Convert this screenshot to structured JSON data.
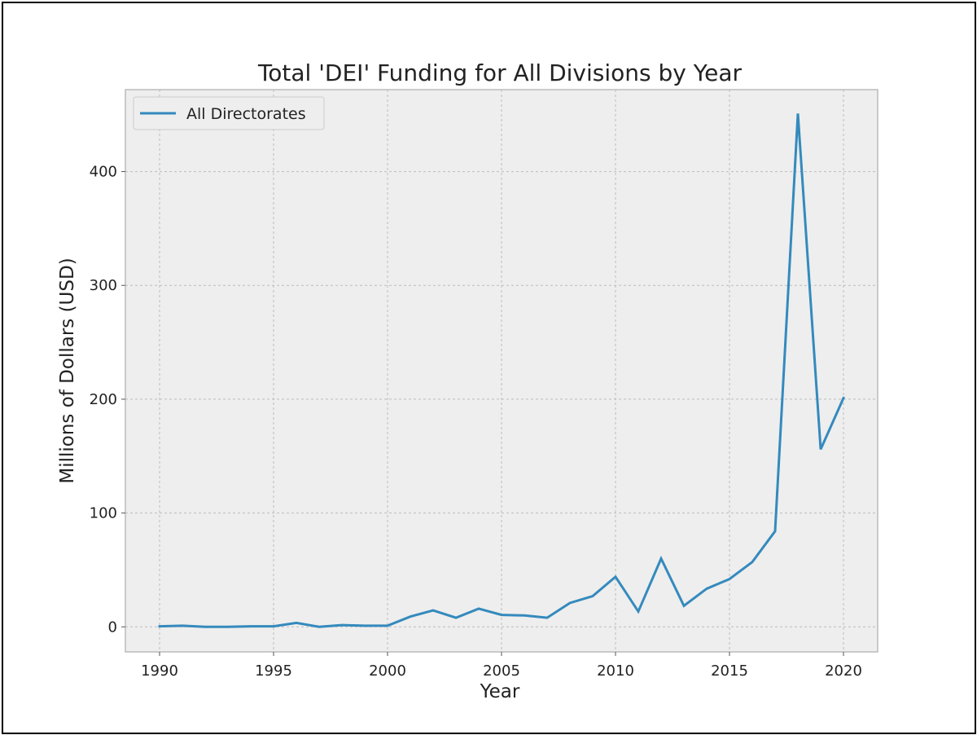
{
  "chart_data": {
    "type": "line",
    "title": "Total 'DEI' Funding for All Divisions by Year",
    "xlabel": "Year",
    "ylabel": "Millions of Dollars (USD)",
    "xlim": [
      1988.5,
      2021.5
    ],
    "ylim": [
      -22,
      472
    ],
    "xticks": [
      1990,
      1995,
      2000,
      2005,
      2010,
      2015,
      2020
    ],
    "xtick_labels": [
      "1990",
      "1995",
      "2000",
      "2005",
      "2010",
      "2015",
      "2020"
    ],
    "yticks": [
      0,
      100,
      200,
      300,
      400
    ],
    "ytick_labels": [
      "0",
      "100",
      "200",
      "300",
      "400"
    ],
    "grid": true,
    "legend_position": "top-left",
    "colors": {
      "series": "#348abd",
      "plot_bg": "#eeeeee",
      "grid": "#bcbcbc",
      "spine": "#bcbcbc"
    },
    "x": [
      1990,
      1991,
      1992,
      1993,
      1994,
      1995,
      1996,
      1997,
      1998,
      1999,
      2000,
      2001,
      2002,
      2003,
      2004,
      2005,
      2006,
      2007,
      2008,
      2009,
      2010,
      2011,
      2012,
      2013,
      2014,
      2015,
      2016,
      2017,
      2018,
      2019,
      2020
    ],
    "series": [
      {
        "name": "All Directorates",
        "values": [
          0.5,
          1,
          0,
          0,
          0.5,
          0.5,
          3.5,
          0,
          1.5,
          1,
          1,
          9,
          14.5,
          8,
          16,
          10.5,
          10,
          8,
          21,
          27,
          44,
          13.5,
          60,
          18.5,
          33.5,
          42,
          57,
          84,
          451,
          156,
          201
        ]
      }
    ]
  }
}
